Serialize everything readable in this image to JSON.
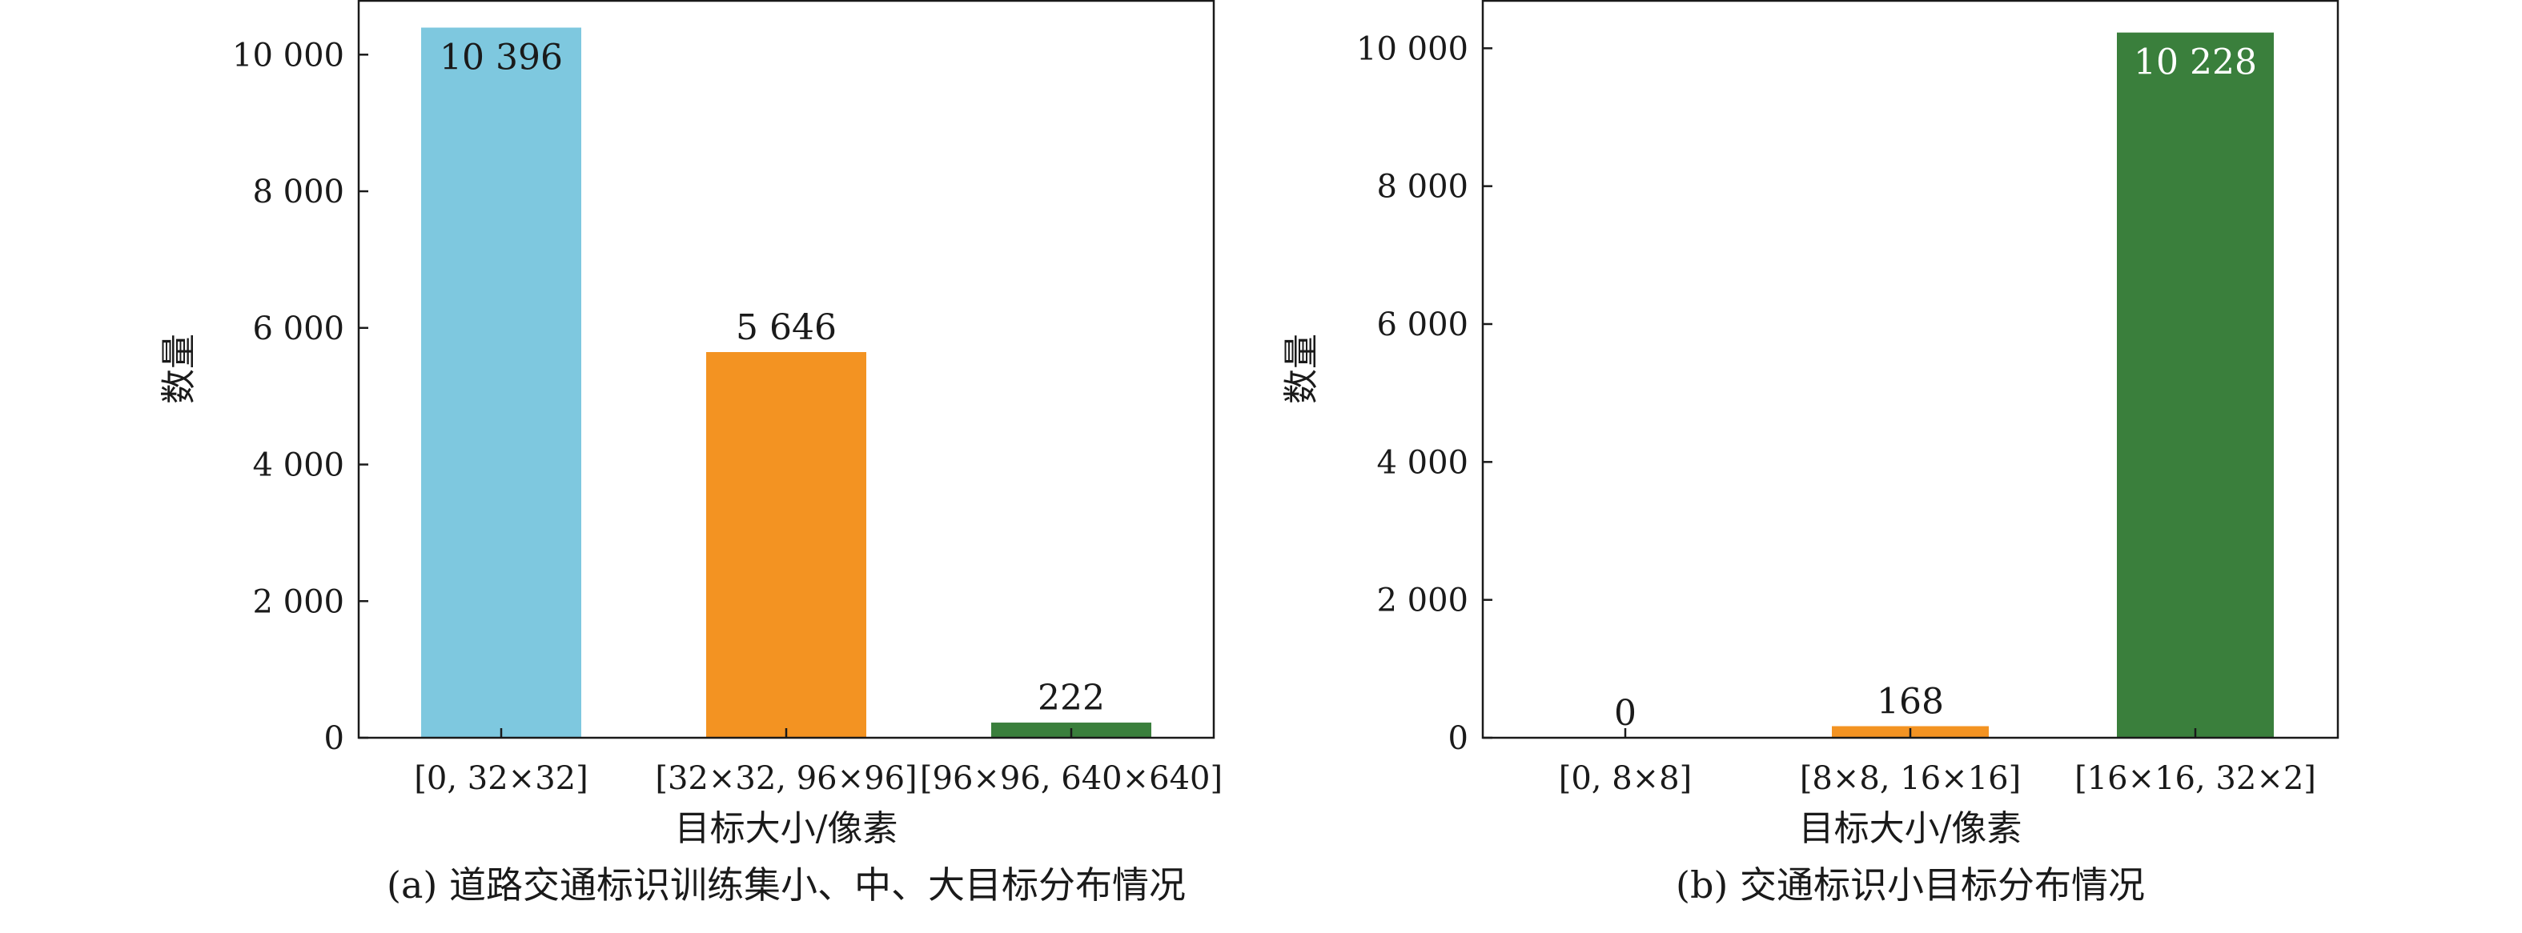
{
  "chart_data": [
    {
      "type": "bar",
      "caption": "(a) 道路交通标识训练集小、中、大目标分布情况",
      "xlabel": "目标大小/像素",
      "ylabel": "数量",
      "ylim": [
        0,
        10800
      ],
      "yticks": [
        0,
        2000,
        4000,
        6000,
        8000,
        10000
      ],
      "ytick_labels": [
        "0",
        "2 000",
        "4 000",
        "6 000",
        "8 000",
        "10 000"
      ],
      "categories": [
        "[0, 32×32]",
        "[32×32, 96×96]",
        "[96×96, 640×640]"
      ],
      "values": [
        10396,
        5646,
        222
      ],
      "value_labels": [
        "10 396",
        "5 646",
        "222"
      ],
      "colors": [
        "#7ec8df",
        "#f39322",
        "#3a7f3c"
      ],
      "grid": false
    },
    {
      "type": "bar",
      "caption": "(b) 交通标识小目标分布情况",
      "xlabel": "目标大小/像素",
      "ylabel": "数量",
      "ylim": [
        0,
        10700
      ],
      "yticks": [
        0,
        2000,
        4000,
        6000,
        8000,
        10000
      ],
      "ytick_labels": [
        "0",
        "2 000",
        "4 000",
        "6 000",
        "8 000",
        "10 000"
      ],
      "categories": [
        "[0, 8×8]",
        "[8×8, 16×16]",
        "[16×16, 32×2]"
      ],
      "values": [
        0,
        168,
        10228
      ],
      "value_labels": [
        "0",
        "168",
        "10 228"
      ],
      "colors": [
        "#7ec8df",
        "#f39322",
        "#3a7f3c"
      ],
      "grid": false
    }
  ]
}
